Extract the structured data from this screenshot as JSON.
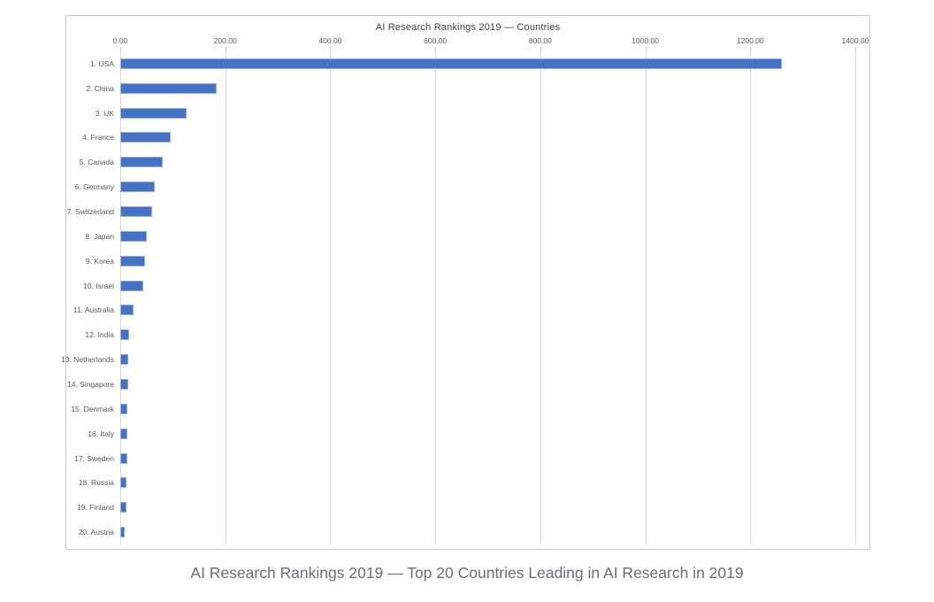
{
  "figure": {
    "title": "AI Research Rankings 2019 — Countries",
    "caption": "AI Research Rankings 2019 — Top 20 Countries Leading in AI Research in 2019"
  },
  "chart_data": {
    "type": "bar",
    "orientation": "horizontal",
    "title": "AI Research Rankings 2019 — Countries",
    "categories": [
      "1. USA",
      "2. China",
      "3. UK",
      "4. France",
      "5. Canada",
      "6. Germany",
      "7. Switzerland",
      "8. Japan",
      "9. Korea",
      "10. Israel",
      "11. Australia",
      "12. India",
      "13. Netherlands",
      "14. Singapore",
      "15. Denmark",
      "16. Italy",
      "17. Sweden",
      "18. Russia",
      "19. Finland",
      "20. Austria"
    ],
    "values": [
      1260,
      184,
      126,
      96,
      81,
      65,
      60,
      51,
      48,
      44,
      26,
      17,
      16,
      15,
      14,
      14,
      13,
      12,
      11,
      9
    ],
    "xlabel": "",
    "ylabel": "",
    "xlim": [
      0,
      1400
    ],
    "xticks": [
      0,
      200,
      400,
      600,
      800,
      1000,
      1200,
      1400
    ],
    "xtick_labels": [
      "0.00",
      "200.00",
      "400.00",
      "600.00",
      "800.00",
      "1000.00",
      "1200.00",
      "1400.00"
    ],
    "grid": true,
    "legend": "none",
    "colors": {
      "bar": "#4472c4",
      "bar_edge": "#98acdf",
      "gridline": "#d9d9d9",
      "title_text": "#3f3f3f",
      "tick_text": "#595959",
      "caption_text": "#6b6e73",
      "frame_border": "#c9c9c9"
    }
  }
}
